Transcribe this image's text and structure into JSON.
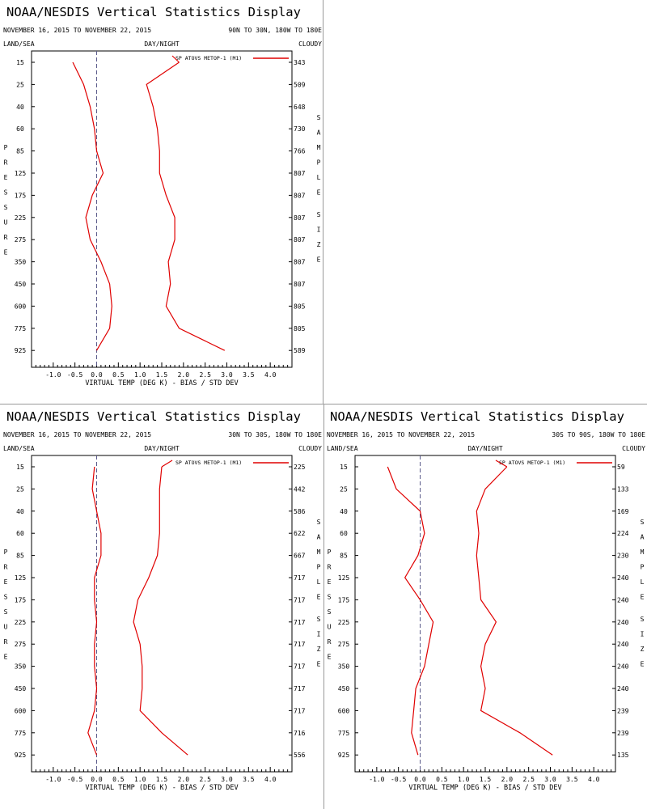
{
  "panels": [
    {
      "title": "NOAA/NESDIS Vertical Statistics Display",
      "date_range": "NOVEMBER 16, 2015 TO NOVEMBER 22, 2015",
      "region": "90N TO 30N, 180W TO 180E",
      "left_top_label": "LAND/SEA",
      "center_top_label": "DAY/NIGHT",
      "right_top_label": "CLOUDY",
      "left_axis_label": "PRESSURE",
      "right_axis_label": [
        "SAMPLE",
        "SIZE"
      ],
      "xlabel": "VIRTUAL TEMP (DEG K) - BIAS / STD DEV",
      "legend": "SP ATOVS METOP-1 (M1)",
      "series_color": "#e00000",
      "chart_data": {
        "type": "line",
        "xlim": [
          -1.5,
          4.5
        ],
        "xticks": [
          "-1.0",
          "-0.5",
          "0.0",
          "0.5",
          "1.0",
          "1.5",
          "2.0",
          "2.5",
          "3.0",
          "3.5",
          "4.0"
        ],
        "pressure": [
          "15",
          "25",
          "40",
          "60",
          "85",
          "125",
          "175",
          "225",
          "275",
          "350",
          "450",
          "600",
          "775",
          "925"
        ],
        "sample_size": [
          "343",
          "509",
          "648",
          "730",
          "766",
          "807",
          "807",
          "807",
          "807",
          "807",
          "807",
          "805",
          "805",
          "589"
        ],
        "bias": [
          -0.55,
          -0.3,
          -0.15,
          -0.05,
          0.0,
          0.15,
          -0.1,
          -0.25,
          -0.15,
          0.1,
          0.3,
          0.35,
          0.3,
          0.0
        ],
        "std_dev": [
          1.9,
          1.15,
          1.3,
          1.4,
          1.45,
          1.45,
          1.6,
          1.8,
          1.8,
          1.65,
          1.7,
          1.6,
          1.9,
          2.95
        ]
      }
    },
    {
      "title": "NOAA/NESDIS Vertical Statistics Display",
      "date_range": "NOVEMBER 16, 2015 TO NOVEMBER 22, 2015",
      "region": "30N TO 30S, 180W TO 180E",
      "left_top_label": "LAND/SEA",
      "center_top_label": "DAY/NIGHT",
      "right_top_label": "CLOUDY",
      "left_axis_label": "PRESSURE",
      "right_axis_label": [
        "SAMPLE",
        "SIZE"
      ],
      "xlabel": "VIRTUAL TEMP (DEG K) - BIAS / STD DEV",
      "legend": "SP ATOVS METOP-1 (M1)",
      "series_color": "#e00000",
      "chart_data": {
        "type": "line",
        "xlim": [
          -1.5,
          4.5
        ],
        "xticks": [
          "-1.0",
          "-0.5",
          "0.0",
          "0.5",
          "1.0",
          "1.5",
          "2.0",
          "2.5",
          "3.0",
          "3.5",
          "4.0"
        ],
        "pressure": [
          "15",
          "25",
          "40",
          "60",
          "85",
          "125",
          "175",
          "225",
          "275",
          "350",
          "450",
          "600",
          "775",
          "925"
        ],
        "sample_size": [
          "225",
          "442",
          "586",
          "622",
          "667",
          "717",
          "717",
          "717",
          "717",
          "717",
          "717",
          "717",
          "716",
          "556"
        ],
        "bias": [
          -0.05,
          -0.1,
          0.0,
          0.1,
          0.1,
          -0.05,
          -0.05,
          0.0,
          -0.05,
          -0.05,
          0.0,
          -0.05,
          -0.2,
          0.0
        ],
        "std_dev": [
          1.5,
          1.45,
          1.45,
          1.45,
          1.4,
          1.2,
          0.95,
          0.85,
          1.0,
          1.05,
          1.05,
          1.0,
          1.5,
          2.1
        ]
      }
    },
    {
      "title": "NOAA/NESDIS Vertical Statistics Display",
      "date_range": "NOVEMBER 16, 2015 TO NOVEMBER 22, 2015",
      "region": "30S TO 90S, 180W TO 180E",
      "left_top_label": "LAND/SEA",
      "center_top_label": "DAY/NIGHT",
      "right_top_label": "CLOUDY",
      "left_axis_label": "PRESSURE",
      "right_axis_label": [
        "SAMPLE",
        "SIZE"
      ],
      "xlabel": "VIRTUAL TEMP (DEG K) - BIAS / STD DEV",
      "legend": "SP ATOVS METOP-1 (M1)",
      "series_color": "#e00000",
      "chart_data": {
        "type": "line",
        "xlim": [
          -1.5,
          4.5
        ],
        "xticks": [
          "-1.0",
          "-0.5",
          "0.0",
          "0.5",
          "1.0",
          "1.5",
          "2.0",
          "2.5",
          "3.0",
          "3.5",
          "4.0"
        ],
        "pressure": [
          "15",
          "25",
          "40",
          "60",
          "85",
          "125",
          "175",
          "225",
          "275",
          "350",
          "450",
          "600",
          "775",
          "925"
        ],
        "sample_size": [
          "59",
          "133",
          "169",
          "224",
          "230",
          "240",
          "240",
          "240",
          "240",
          "240",
          "240",
          "239",
          "239",
          "135"
        ],
        "bias": [
          -0.75,
          -0.55,
          0.0,
          0.1,
          -0.05,
          -0.35,
          0.0,
          0.3,
          0.2,
          0.1,
          -0.1,
          -0.15,
          -0.2,
          -0.05
        ],
        "std_dev": [
          2.0,
          1.5,
          1.3,
          1.35,
          1.3,
          1.35,
          1.4,
          1.75,
          1.5,
          1.4,
          1.5,
          1.4,
          2.3,
          3.05
        ]
      }
    }
  ]
}
